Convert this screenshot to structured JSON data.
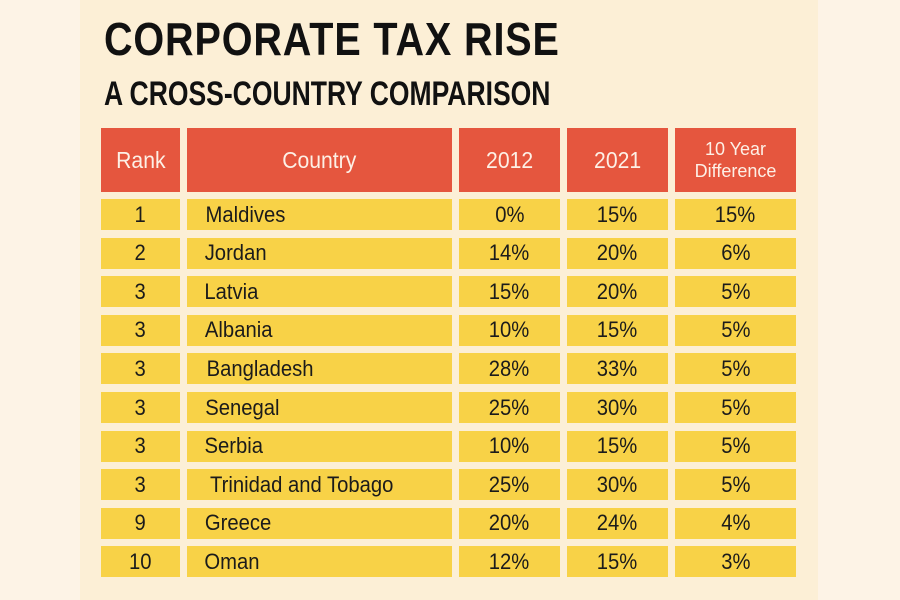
{
  "chart_data": {
    "type": "table",
    "title": "CORPORATE TAX RISE",
    "subtitle": "A CROSS-COUNTRY COMPARISON",
    "columns": [
      "Rank",
      "Country",
      "2012",
      "2021",
      "10 Year Difference"
    ],
    "header_lines": {
      "difference": [
        "10 Year",
        "Difference"
      ]
    },
    "rows": [
      {
        "rank": "1",
        "country": "Maldives",
        "y2012": "0%",
        "y2021": "15%",
        "diff": "15%"
      },
      {
        "rank": "2",
        "country": "Jordan",
        "y2012": "14%",
        "y2021": "20%",
        "diff": "6%"
      },
      {
        "rank": "3",
        "country": "Latvia",
        "y2012": "15%",
        "y2021": "20%",
        "diff": "5%"
      },
      {
        "rank": "3",
        "country": "Albania",
        "y2012": "10%",
        "y2021": "15%",
        "diff": "5%"
      },
      {
        "rank": "3",
        "country": "Bangladesh",
        "y2012": "28%",
        "y2021": "33%",
        "diff": "5%"
      },
      {
        "rank": "3",
        "country": "Senegal",
        "y2012": "25%",
        "y2021": "30%",
        "diff": "5%"
      },
      {
        "rank": "3",
        "country": "Serbia",
        "y2012": "10%",
        "y2021": "15%",
        "diff": "5%"
      },
      {
        "rank": "3",
        "country": "Trinidad and Tobago",
        "y2012": "25%",
        "y2021": "30%",
        "diff": "5%"
      },
      {
        "rank": "9",
        "country": "Greece",
        "y2012": "20%",
        "y2021": "24%",
        "diff": "4%"
      },
      {
        "rank": "10",
        "country": "Oman",
        "y2012": "12%",
        "y2021": "15%",
        "diff": "3%"
      }
    ]
  },
  "colors": {
    "background": "#fdf3e6",
    "panel": "#fcefd6",
    "header_fill": "#e5563e",
    "header_text": "#fdf0e6",
    "row_fill": "#f8d247",
    "text": "#1b1b1b"
  }
}
